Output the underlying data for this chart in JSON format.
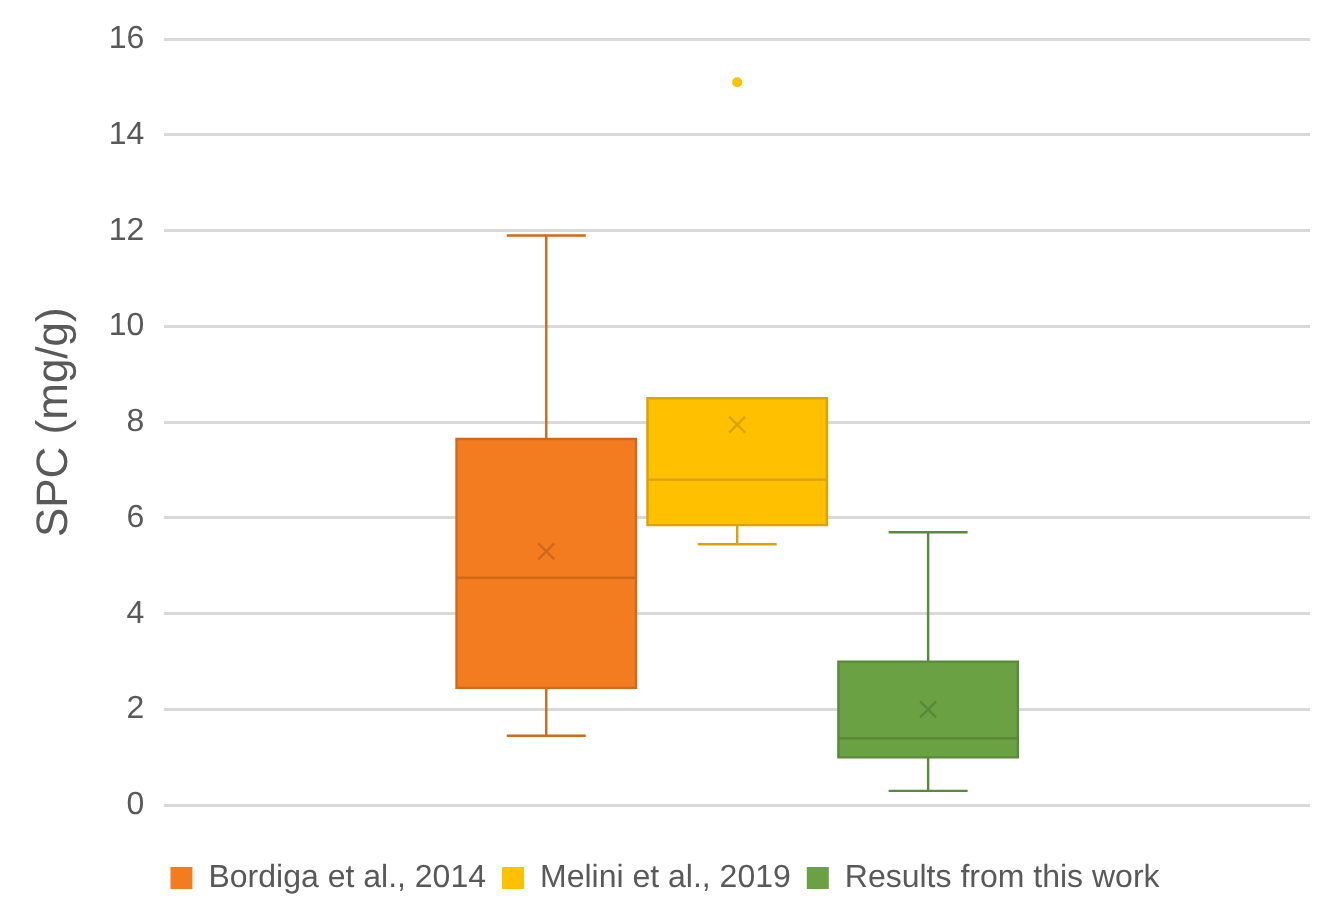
{
  "chart_data": {
    "type": "box",
    "ylabel": "SPC (mg/g)",
    "categories": [
      null
    ],
    "series": [
      {
        "name": "Bordiga et al., 2014",
        "color": "#f47c20",
        "boxes": [
          {
            "low": 1.45,
            "q1": 2.45,
            "median": 4.75,
            "q3": 7.65,
            "high": 11.9,
            "mean": 5.3
          }
        ]
      },
      {
        "name": "Melini et al., 2019",
        "color": "#ffc000",
        "boxes": [
          {
            "low": 5.45,
            "q1": 5.85,
            "median": 6.8,
            "q3": 8.5,
            "high": 8.5,
            "mean": 7.95,
            "outliers": [
              15.1
            ]
          }
        ]
      },
      {
        "name": "Results from this work",
        "color": "#6aa142",
        "boxes": [
          {
            "low": 0.3,
            "q1": 1.0,
            "median": 1.4,
            "q3": 3.0,
            "high": 5.7,
            "mean": 2.0
          }
        ]
      }
    ],
    "ylim": [
      0,
      16
    ],
    "yticks": [
      0,
      2,
      4,
      6,
      8,
      10,
      12,
      14,
      16
    ],
    "grid": "y",
    "legend": "bottom"
  }
}
